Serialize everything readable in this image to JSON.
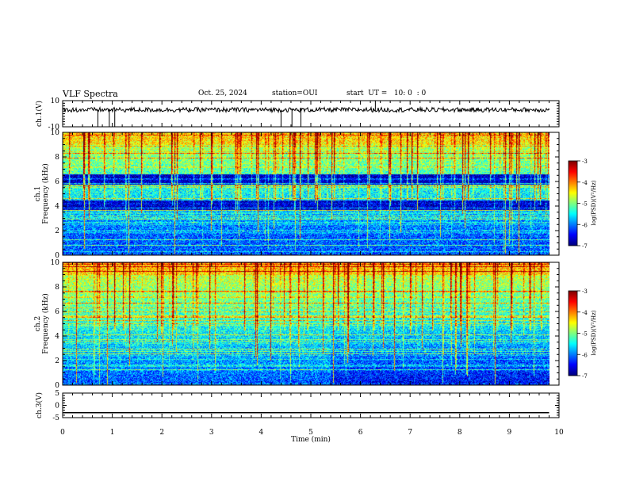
{
  "header": {
    "title": "VLF Spectra",
    "date": "Oct. 25, 2024",
    "station": "station=OUI",
    "start": "start  UT =   10: 0  : 0"
  },
  "chart_data": [
    {
      "type": "line",
      "ylabel": "ch.1(V)",
      "ylim": [
        -10,
        10
      ],
      "yticks": [
        10,
        -10
      ],
      "xlim": [
        0,
        10
      ],
      "description_values": {
        "baseline": 3,
        "noise_amplitude": 0.8
      },
      "spikes": [
        {
          "x": 0.71,
          "y": -10
        },
        {
          "x": 0.94,
          "y": -10
        },
        {
          "x": 1.05,
          "y": -10
        },
        {
          "x": 4.4,
          "y": -10
        },
        {
          "x": 4.62,
          "y": -10
        },
        {
          "x": 4.8,
          "y": -10
        },
        {
          "x": 6.3,
          "y": 10
        }
      ]
    },
    {
      "type": "heatmap",
      "ylabel": "ch.1 Frequency (kHz)",
      "ylim": [
        0,
        10
      ],
      "yticks": [
        0,
        2,
        4,
        6,
        8,
        10
      ],
      "xlim": [
        0,
        10
      ],
      "colorbar": {
        "label": "log(PSD)(V²/Hz)",
        "ticks": [
          -3,
          -4,
          -5,
          -6,
          -7
        ],
        "range": [
          -7,
          -3
        ]
      }
    },
    {
      "type": "heatmap",
      "ylabel": "ch.2 Frequency (kHz)",
      "ylim": [
        0,
        10
      ],
      "yticks": [
        0,
        2,
        4,
        6,
        8,
        10
      ],
      "xlim": [
        0,
        10
      ],
      "colorbar": {
        "label": "log(PSD)(V²/Hz)",
        "ticks": [
          -3,
          -4,
          -5,
          -6,
          -7
        ],
        "range": [
          -7,
          -3
        ]
      }
    },
    {
      "type": "line",
      "ylabel": "ch.3(V)",
      "ylim": [
        -5,
        5
      ],
      "yticks": [
        5,
        0,
        -5
      ],
      "xlim": [
        0,
        10
      ],
      "x": [
        0,
        9.8
      ],
      "y": [
        -3,
        -3
      ]
    }
  ],
  "xaxis": {
    "label": "Time  (min)",
    "ticks": [
      "0",
      "1",
      "2",
      "3",
      "4",
      "5",
      "6",
      "7",
      "8",
      "9",
      "10"
    ]
  },
  "colors": {
    "axis": "#000000",
    "background": "#ffffff"
  }
}
